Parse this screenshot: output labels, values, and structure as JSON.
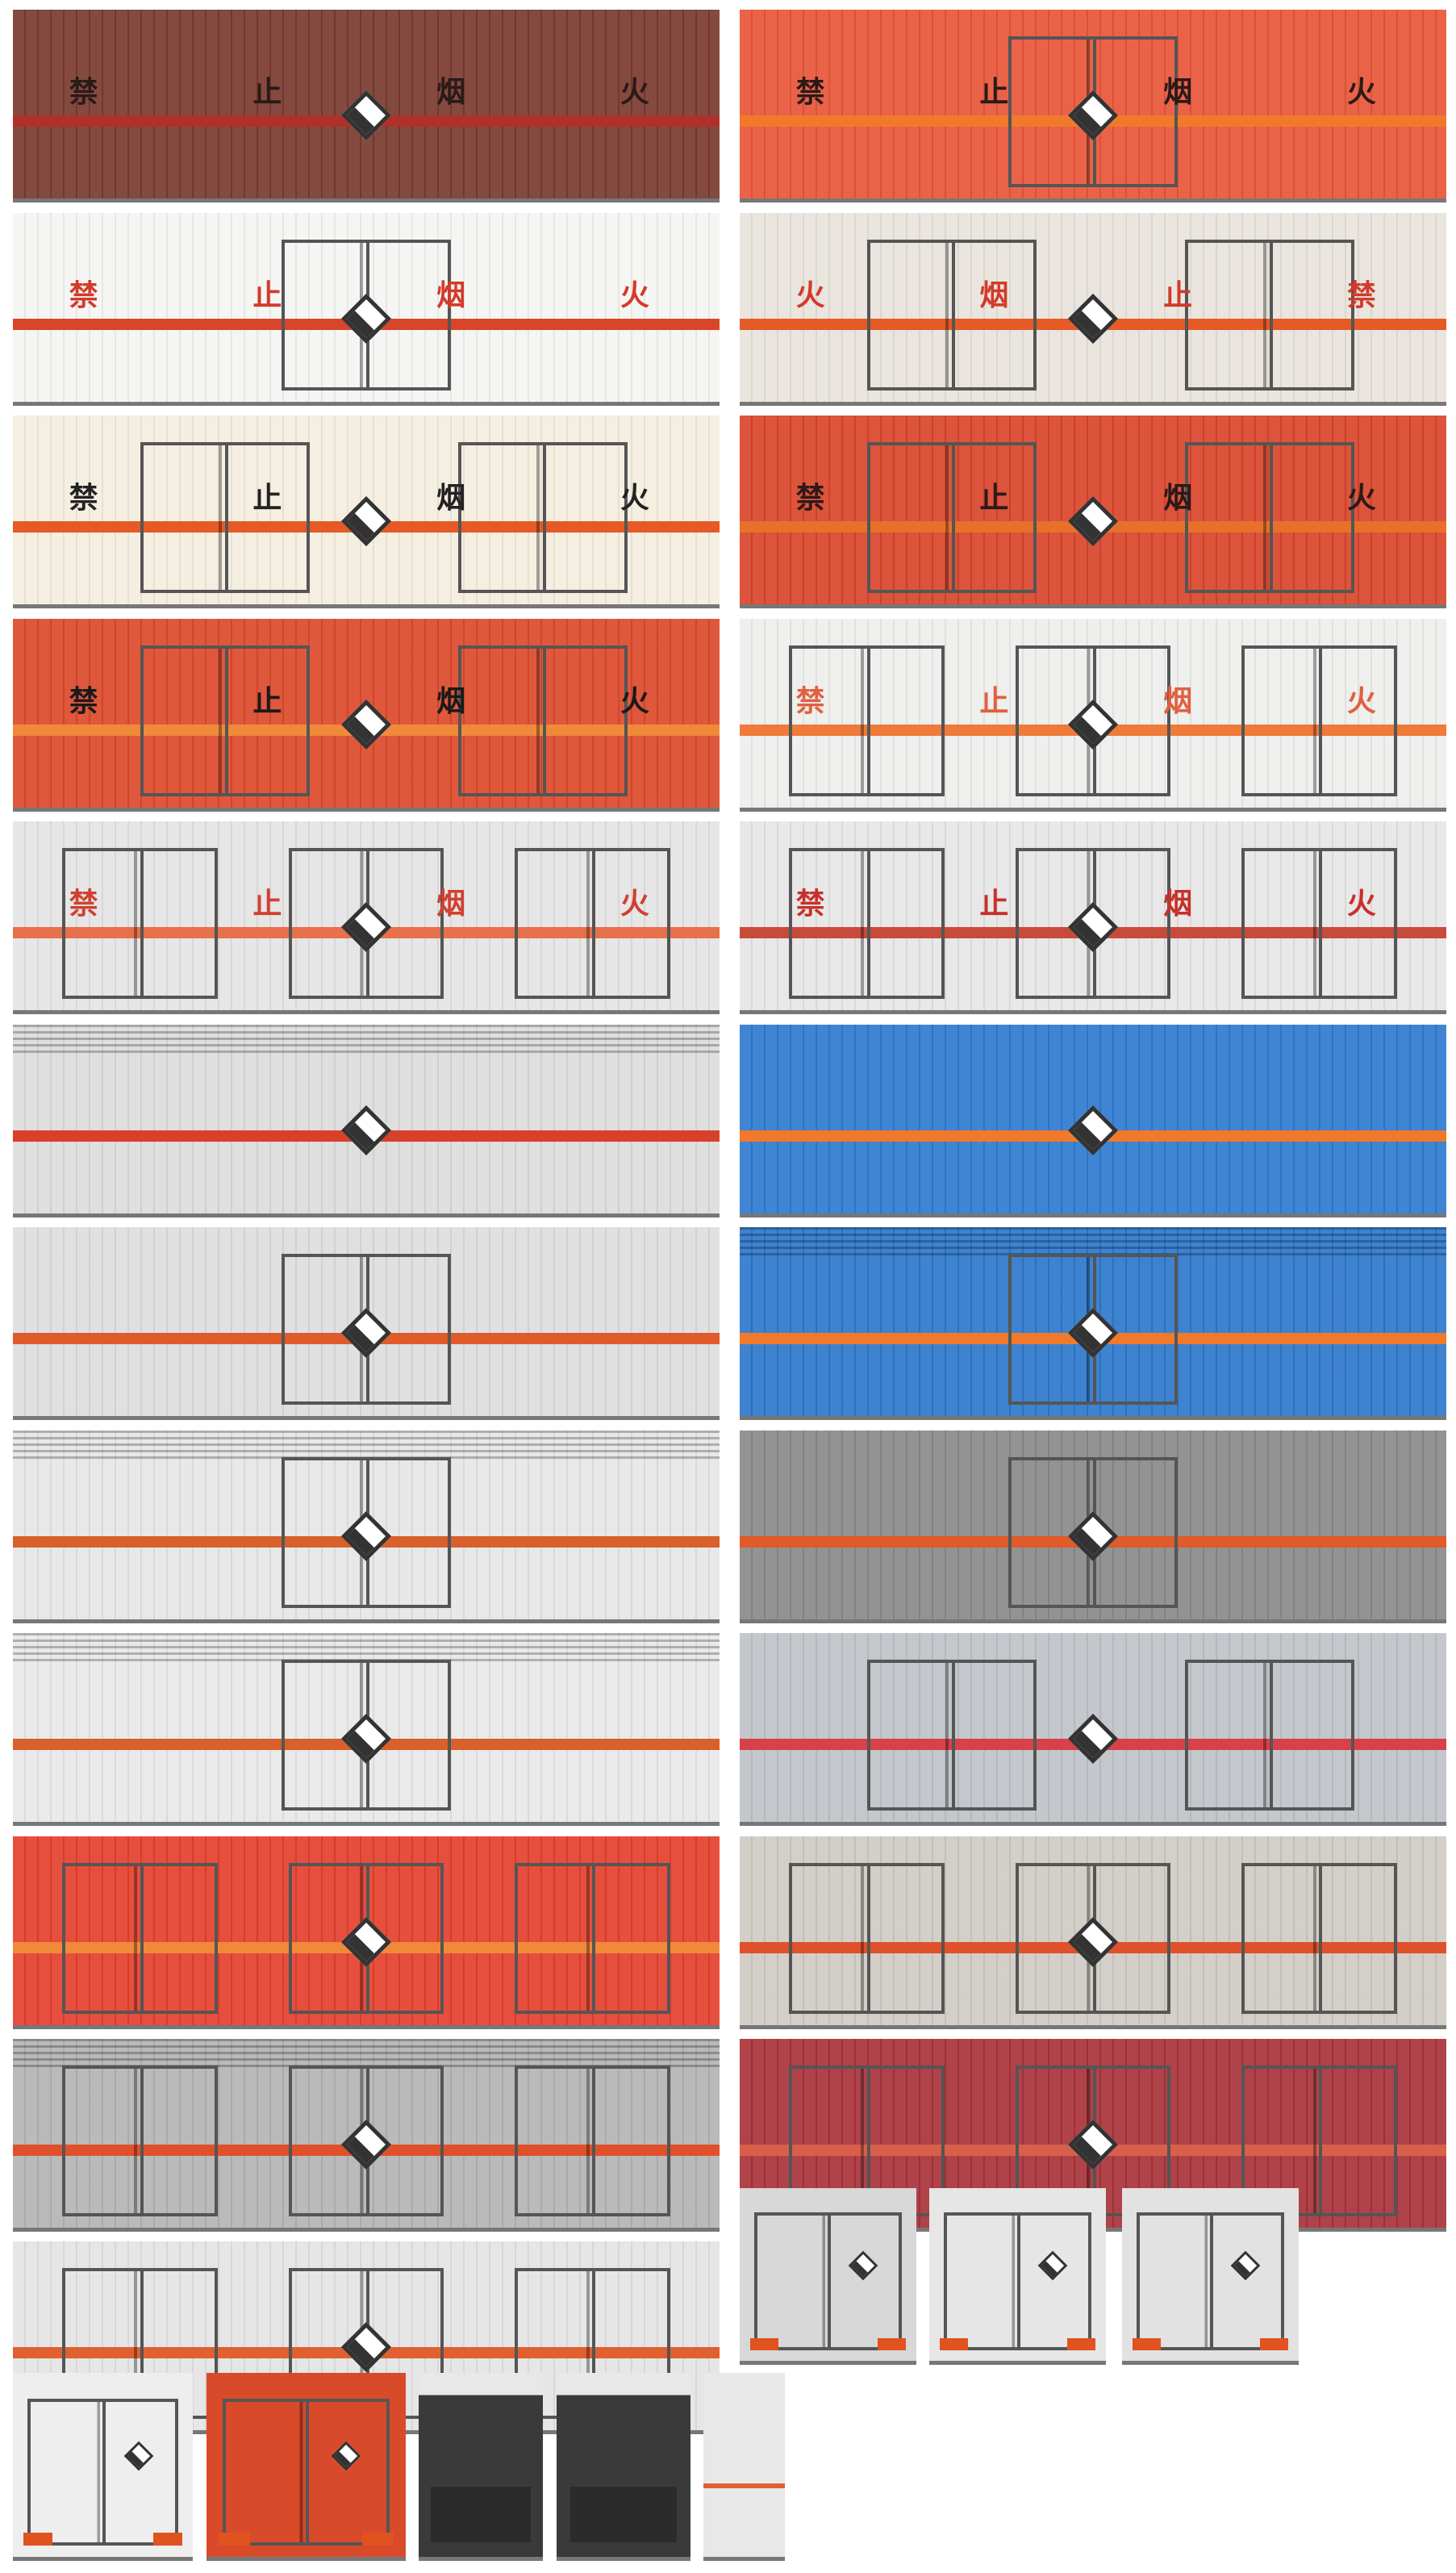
{
  "panels": [
    {
      "id": "p1",
      "body": "#7a3b30",
      "stripe": "#b0302a",
      "glyphs": [
        "禁",
        "止",
        "烟",
        "火"
      ],
      "glyph_color": "#2a1a18",
      "doors": 0,
      "vents": false
    },
    {
      "id": "p2",
      "body": "#e8563a",
      "stripe": "#f07a2a",
      "glyphs": [
        "禁",
        "止",
        "烟",
        "火"
      ],
      "glyph_color": "#2a1a18",
      "doors": 1,
      "vents": false
    },
    {
      "id": "p3",
      "body": "#f4f4f2",
      "stripe": "#d8452a",
      "glyphs": [
        "禁",
        "止",
        "烟",
        "火"
      ],
      "glyph_color": "#d23a2a",
      "doors": 1,
      "vents": false
    },
    {
      "id": "p4",
      "body": "#e8e4dc",
      "stripe": "#e55a25",
      "glyphs": [
        "火",
        "烟",
        "止",
        "禁"
      ],
      "glyph_color": "#d23a2a",
      "doors": 2,
      "vents": false
    },
    {
      "id": "p5",
      "body": "#f4eee0",
      "stripe": "#e55a25",
      "glyphs": [
        "禁",
        "止",
        "烟",
        "火"
      ],
      "glyph_color": "#222222",
      "doors": 2,
      "vents": false
    },
    {
      "id": "p6",
      "body": "#d9452c",
      "stripe": "#e8702a",
      "glyphs": [
        "禁",
        "止",
        "烟",
        "火"
      ],
      "glyph_color": "#2a1a18",
      "doors": 2,
      "vents": false
    },
    {
      "id": "p7",
      "body": "#dc4a2c",
      "stripe": "#f08a3a",
      "glyphs": [
        "禁",
        "止",
        "烟",
        "火"
      ],
      "glyph_color": "#1a1a1a",
      "doors": 2,
      "vents": false
    },
    {
      "id": "p8",
      "body": "#eeeeec",
      "stripe": "#ef7a3a",
      "glyphs": [
        "禁",
        "止",
        "烟",
        "火"
      ],
      "glyph_color": "#e06040",
      "doors": 3,
      "vents": false
    },
    {
      "id": "p9",
      "body": "#e4e4e4",
      "stripe": "#e8704a",
      "glyphs": [
        "禁",
        "止",
        "烟",
        "火"
      ],
      "glyph_color": "#d04030",
      "doors": 3,
      "vents": false
    },
    {
      "id": "p10",
      "body": "#e6e6e6",
      "stripe": "#c84a3a",
      "glyphs": [
        "禁",
        "止",
        "烟",
        "火"
      ],
      "glyph_color": "#c8302a",
      "doors": 3,
      "vents": false
    },
    {
      "id": "p11",
      "body": "#dcdcdc",
      "stripe": "#d8402a",
      "glyphs": [],
      "glyph_color": "#000000",
      "doors": 0,
      "vents": true
    },
    {
      "id": "p12",
      "body": "#2f7bd0",
      "stripe": "#f07a2a",
      "glyphs": [],
      "glyph_color": "#000000",
      "doors": 0,
      "vents": false
    },
    {
      "id": "p13",
      "body": "#dedede",
      "stripe": "#e05a2a",
      "glyphs": [],
      "glyph_color": "#000000",
      "doors": 1,
      "vents": false
    },
    {
      "id": "p14",
      "body": "#2e78cc",
      "stripe": "#f07a2a",
      "glyphs": [],
      "glyph_color": "#000000",
      "doors": 1,
      "vents": true
    },
    {
      "id": "p15",
      "body": "#e6e6e6",
      "stripe": "#d8602a",
      "glyphs": [],
      "glyph_color": "#000000",
      "doors": 1,
      "vents": true
    },
    {
      "id": "p16",
      "body": "#8a8a8a",
      "stripe": "#e05a2a",
      "glyphs": [],
      "glyph_color": "#000000",
      "doors": 1,
      "vents": false
    },
    {
      "id": "p17",
      "body": "#e8e8e8",
      "stripe": "#d8602a",
      "glyphs": [],
      "glyph_color": "#000000",
      "doors": 1,
      "vents": true
    },
    {
      "id": "p18",
      "body": "#bfc3c8",
      "stripe": "#d8404a",
      "glyphs": [],
      "glyph_color": "#000000",
      "doors": 2,
      "vents": false
    },
    {
      "id": "p19",
      "body": "#e4402e",
      "stripe": "#f08a3a",
      "glyphs": [],
      "glyph_color": "#000000",
      "doors": 3,
      "vents": false
    },
    {
      "id": "p20",
      "body": "#cfcbc4",
      "stripe": "#e0502a",
      "glyphs": [],
      "glyph_color": "#000000",
      "doors": 3,
      "vents": false
    },
    {
      "id": "p21",
      "body": "#b4b4b4",
      "stripe": "#e0502a",
      "glyphs": [],
      "glyph_color": "#000000",
      "doors": 3,
      "vents": true
    },
    {
      "id": "p22",
      "body": "#a8333a",
      "stripe": "#d8604a",
      "glyphs": [],
      "glyph_color": "#000000",
      "doors": 3,
      "vents": false
    },
    {
      "id": "p23",
      "body": "#e4e4e4",
      "stripe": "#e06030",
      "glyphs": [],
      "glyph_color": "#000000",
      "doors": 3,
      "vents": false
    }
  ],
  "rear_views": [
    {
      "id": "r1",
      "body": "#d8d8d8",
      "variant": "doors"
    },
    {
      "id": "r2",
      "body": "#e6e6e6",
      "variant": "doors"
    },
    {
      "id": "r3",
      "body": "#e2e2e2",
      "variant": "doors"
    },
    {
      "id": "r4",
      "body": "#eeeeee",
      "variant": "doors"
    },
    {
      "id": "r5",
      "body": "#d84a2a",
      "variant": "doors"
    },
    {
      "id": "r6",
      "body": "#3a3a3a",
      "variant": "cab"
    },
    {
      "id": "r7",
      "body": "#3a3a3a",
      "variant": "cab"
    },
    {
      "id": "r8",
      "body": "#e8e8e8",
      "variant": "side"
    }
  ]
}
